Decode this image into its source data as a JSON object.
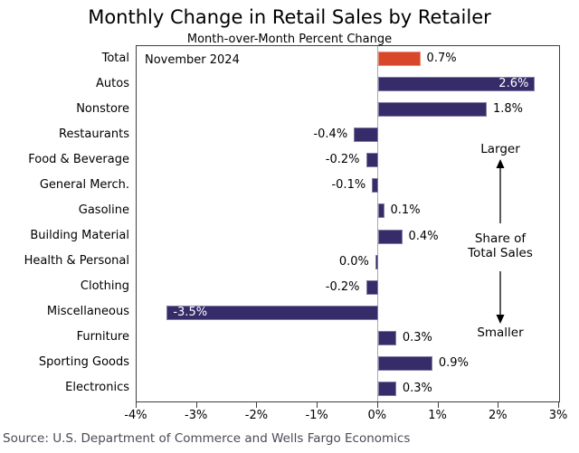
{
  "title": "Monthly Change in Retail Sales by Retailer",
  "subtitle": "Month-over-Month Percent Change",
  "annotation_date": "November 2024",
  "side_annotation": {
    "larger": "Larger",
    "share_line1": "Share of",
    "share_line2": "Total Sales",
    "smaller": "Smaller"
  },
  "source": "Source: U.S. Department of Commerce and Wells Fargo Economics",
  "colors": {
    "bar": "#362c6a",
    "highlight_bar": "#d9472b",
    "axis": "#3f3f3f",
    "zero_line": "#a9a9a9",
    "inside_label": "#ffffff",
    "text": "#000000",
    "source_text": "#4a4a57"
  },
  "chart_data": {
    "type": "bar",
    "orientation": "horizontal",
    "title": "Monthly Change in Retail Sales by Retailer",
    "subtitle": "Month-over-Month Percent Change",
    "period_label": "November 2024",
    "categories": [
      "Total",
      "Autos",
      "Nonstore",
      "Restaurants",
      "Food & Beverage",
      "General Merch.",
      "Gasoline",
      "Building Material",
      "Health & Personal",
      "Clothing",
      "Miscellaneous",
      "Furniture",
      "Sporting Goods",
      "Electronics"
    ],
    "values": [
      0.7,
      2.6,
      1.8,
      -0.4,
      -0.2,
      -0.1,
      0.1,
      0.4,
      0.0,
      -0.2,
      -3.5,
      0.3,
      0.9,
      0.3
    ],
    "value_labels": [
      "0.7%",
      "2.6%",
      "1.8%",
      "-0.4%",
      "-0.2%",
      "-0.1%",
      "0.1%",
      "0.4%",
      "0.0%",
      "-0.2%",
      "-3.5%",
      "0.3%",
      "0.9%",
      "0.3%"
    ],
    "highlight_index": 0,
    "xlim": [
      -4,
      3
    ],
    "xtick_labels": [
      "-4%",
      "-3%",
      "-2%",
      "-1%",
      "0%",
      "1%",
      "2%",
      "3%"
    ],
    "grid": "off",
    "legend": "none",
    "side_note": "Categories ordered by share of total sales, larger at top, smaller at bottom"
  }
}
